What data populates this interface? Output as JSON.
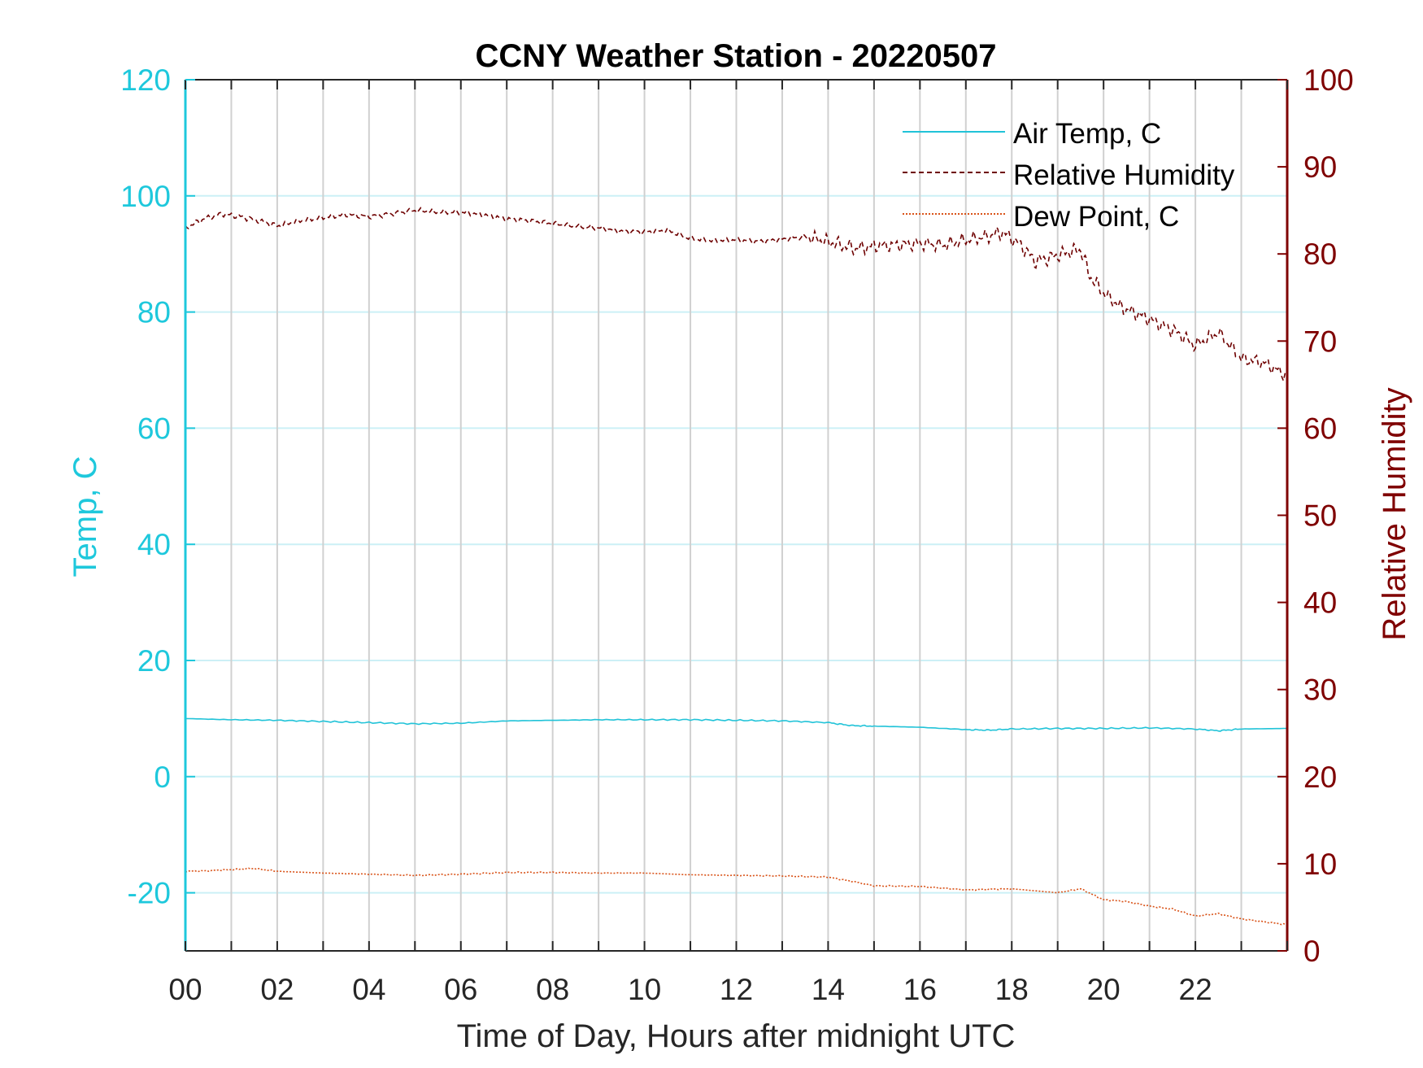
{
  "chart_data": {
    "type": "line",
    "title": "CCNY Weather Station - 20220507",
    "xlabel": "Time of Day, Hours after midnight UTC",
    "ylabel_left": "Temp, C",
    "ylabel_right": "Relative Humidity",
    "xlim": [
      0,
      24
    ],
    "ylim_left": [
      -30,
      120
    ],
    "ylim_right": [
      0,
      100
    ],
    "x_ticks": [
      0,
      2,
      4,
      6,
      8,
      10,
      12,
      14,
      16,
      18,
      20,
      22
    ],
    "x_tick_labels": [
      "00",
      "02",
      "04",
      "06",
      "08",
      "10",
      "12",
      "14",
      "16",
      "18",
      "20",
      "22"
    ],
    "y_left_ticks": [
      -20,
      0,
      20,
      40,
      60,
      80,
      100,
      120
    ],
    "y_left_tick_labels": [
      "-20",
      "0",
      "20",
      "40",
      "60",
      "80",
      "100",
      "120"
    ],
    "y_right_ticks": [
      0,
      10,
      20,
      30,
      40,
      50,
      60,
      70,
      80,
      90,
      100
    ],
    "y_right_tick_labels": [
      "0",
      "10",
      "20",
      "30",
      "40",
      "50",
      "60",
      "70",
      "80",
      "90",
      "100"
    ],
    "grid": "vertical lines every hour, horizontal lines at left-axis ticks",
    "legend_position": "top-right",
    "colors": {
      "left_axis": "#1ec8dc",
      "right_axis": "#7f0000",
      "air_temp": "#21c3d8",
      "humidity": "#6e0000",
      "dew_point": "#d95319",
      "grid_vertical": "#d0d0d0",
      "grid_horizontal": "#ccf0f6"
    },
    "series": [
      {
        "name": "Air Temp, C",
        "axis": "left",
        "style": "solid",
        "x": [
          0,
          1,
          2,
          3,
          4,
          5,
          6,
          7,
          8,
          9,
          10,
          11,
          12,
          13,
          14,
          14.5,
          15,
          16,
          17,
          17.5,
          18,
          19,
          20,
          21,
          22,
          22.5,
          23,
          24
        ],
        "values": [
          10,
          9.8,
          9.7,
          9.5,
          9.3,
          9.1,
          9.2,
          9.6,
          9.7,
          9.8,
          9.8,
          9.8,
          9.7,
          9.6,
          9.3,
          8.8,
          8.7,
          8.5,
          8.1,
          8.0,
          8.2,
          8.3,
          8.3,
          8.4,
          8.2,
          7.9,
          8.2,
          8.3
        ]
      },
      {
        "name": "Relative Humidity",
        "axis": "right",
        "style": "dashed",
        "x": [
          0,
          0.4,
          0.8,
          1.2,
          1.6,
          2.0,
          2.5,
          3.0,
          3.5,
          4.0,
          4.5,
          5.0,
          5.5,
          6.0,
          6.5,
          7.0,
          7.5,
          8.0,
          8.5,
          9.0,
          9.5,
          10.0,
          10.5,
          11.0,
          11.5,
          12.0,
          12.5,
          13.0,
          13.5,
          14.0,
          14.3,
          14.6,
          15.0,
          15.5,
          16.0,
          16.5,
          17.0,
          17.5,
          17.8,
          18.2,
          18.5,
          18.8,
          19.2,
          19.5,
          19.7,
          20.0,
          20.4,
          20.8,
          21.2,
          21.6,
          22.0,
          22.5,
          23.0,
          23.5,
          24.0
        ],
        "values": [
          83.0,
          84.0,
          84.6,
          84.3,
          83.8,
          83.2,
          83.8,
          84.2,
          84.5,
          84.3,
          84.6,
          85.0,
          84.8,
          84.8,
          84.5,
          84.0,
          83.8,
          83.5,
          83.2,
          83.0,
          82.6,
          82.5,
          82.7,
          81.8,
          81.5,
          81.6,
          81.4,
          81.7,
          82.0,
          81.4,
          81.0,
          80.6,
          80.9,
          81.0,
          81.2,
          81.0,
          81.6,
          82.0,
          82.5,
          81.0,
          79.2,
          79.5,
          80.2,
          80.5,
          77.5,
          75.5,
          73.8,
          73.0,
          72.0,
          71.0,
          69.5,
          71.0,
          68.0,
          67.5,
          66.0
        ]
      },
      {
        "name": "Dew Point, C",
        "axis": "left",
        "style": "dotted",
        "x": [
          0,
          0.5,
          1,
          1.5,
          2,
          3,
          4,
          5,
          6,
          7,
          8,
          9,
          10,
          11,
          12,
          13,
          14,
          14.5,
          15,
          16,
          17,
          17.5,
          18,
          19,
          19.5,
          20,
          20.5,
          21,
          21.5,
          22,
          22.5,
          23,
          23.5,
          24
        ],
        "values": [
          -16.3,
          -16.2,
          -16.0,
          -15.8,
          -16.3,
          -16.6,
          -16.8,
          -17.0,
          -16.8,
          -16.5,
          -16.5,
          -16.6,
          -16.6,
          -16.9,
          -17.0,
          -17.1,
          -17.3,
          -18.0,
          -18.8,
          -18.9,
          -19.5,
          -19.4,
          -19.3,
          -20.0,
          -19.3,
          -21.2,
          -21.5,
          -22.3,
          -22.8,
          -24.0,
          -23.6,
          -24.5,
          -25.0,
          -25.5
        ]
      }
    ]
  }
}
